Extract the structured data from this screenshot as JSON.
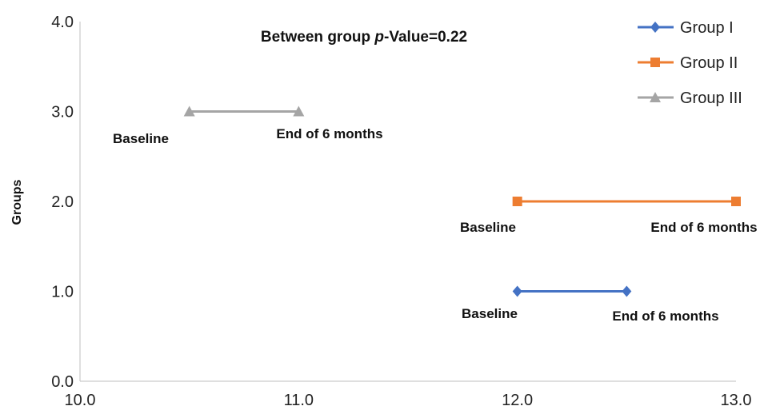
{
  "chart_data": {
    "type": "line",
    "title_parts": [
      "Between group ",
      "p",
      "-Value=0.22"
    ],
    "xlabel": "",
    "ylabel": "Groups",
    "xlim": [
      10.0,
      13.0
    ],
    "ylim": [
      0.0,
      4.0
    ],
    "x_ticks": [
      "10.0",
      "11.0",
      "12.0",
      "13.0"
    ],
    "y_ticks": [
      "0.0",
      "1.0",
      "2.0",
      "3.0",
      "4.0"
    ],
    "grid": false,
    "legend_position": "top-right",
    "series": [
      {
        "name": "Group I",
        "color": "#4472C4",
        "marker": "diamond",
        "points": [
          {
            "x": 12.0,
            "y": 1.0,
            "label": "Baseline"
          },
          {
            "x": 12.5,
            "y": 1.0,
            "label": "End of 6 months"
          }
        ]
      },
      {
        "name": "Group II",
        "color": "#ED7D31",
        "marker": "square",
        "points": [
          {
            "x": 12.0,
            "y": 2.0,
            "label": "Baseline"
          },
          {
            "x": 13.0,
            "y": 2.0,
            "label": "End of 6 months"
          }
        ]
      },
      {
        "name": "Group III",
        "color": "#A5A5A5",
        "marker": "triangle",
        "points": [
          {
            "x": 10.5,
            "y": 3.0,
            "label": "Baseline"
          },
          {
            "x": 11.0,
            "y": 3.0,
            "label": "End of 6 months"
          }
        ]
      }
    ]
  }
}
